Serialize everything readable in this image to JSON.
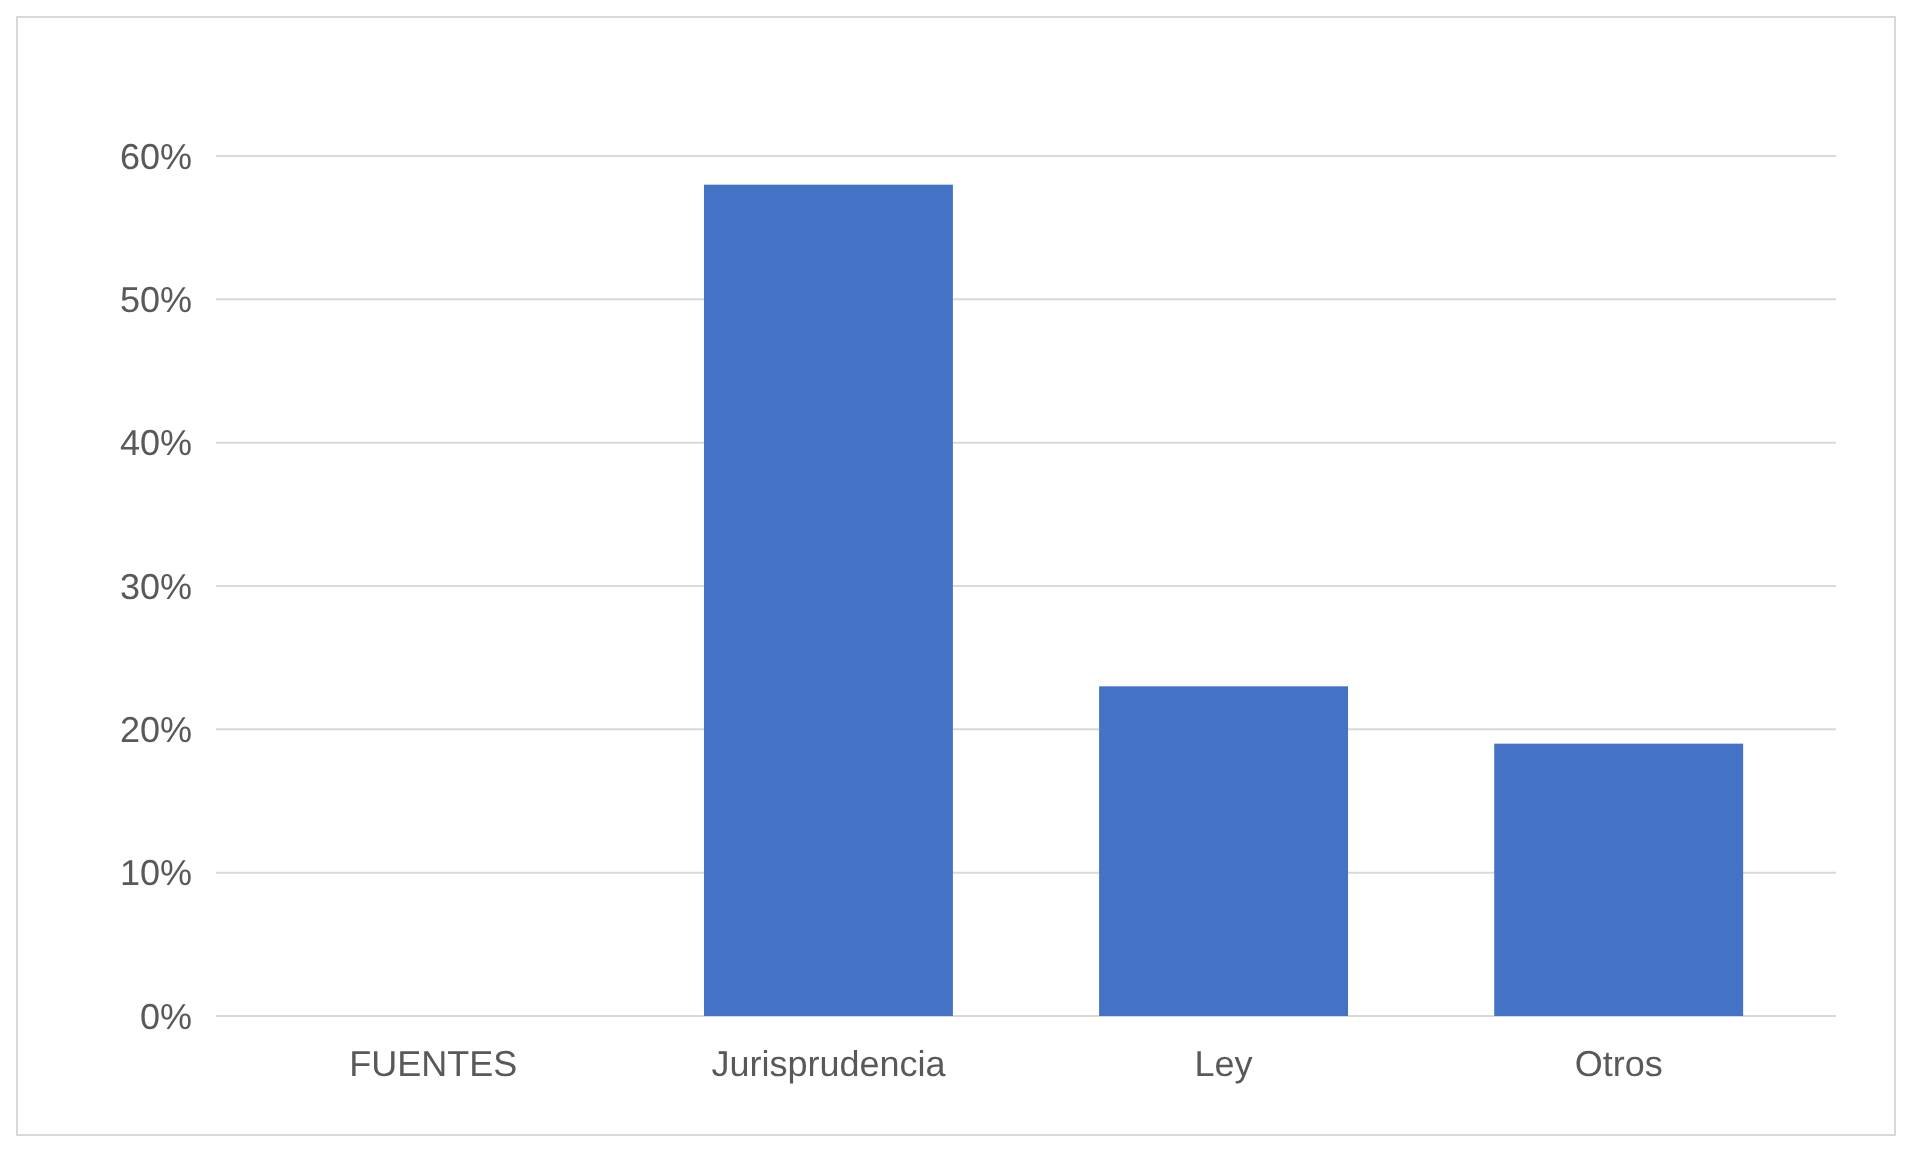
{
  "chart_data": {
    "type": "bar",
    "categories": [
      "FUENTES",
      "Jurisprudencia",
      "Ley",
      "Otros"
    ],
    "values": [
      null,
      58,
      23,
      19
    ],
    "color": "#4472c4",
    "ylim": [
      0,
      60
    ],
    "yticks": [
      {
        "value": 0,
        "label": "0%"
      },
      {
        "value": 10,
        "label": "10%"
      },
      {
        "value": 20,
        "label": "20%"
      },
      {
        "value": 30,
        "label": "30%"
      },
      {
        "value": 40,
        "label": "40%"
      },
      {
        "value": 50,
        "label": "50%"
      },
      {
        "value": 60,
        "label": "60%"
      }
    ],
    "grid": "y"
  }
}
